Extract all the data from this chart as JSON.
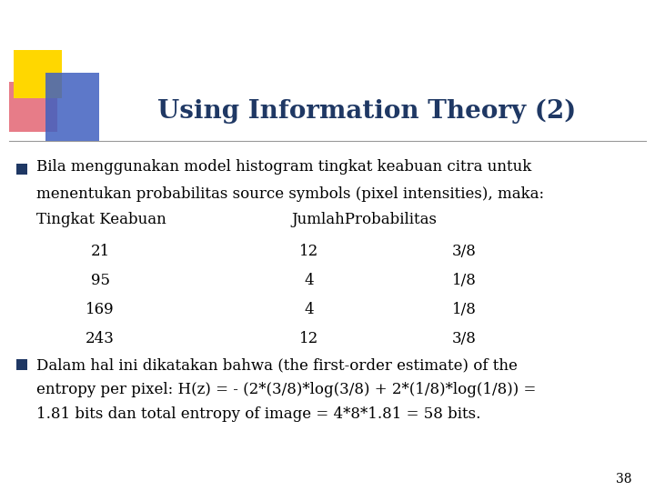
{
  "title": "Using Information Theory (2)",
  "title_color": "#1F3864",
  "background_color": "#FFFFFF",
  "accent_yellow": "#FFD700",
  "accent_red": "#E05060",
  "accent_blue": "#4060C0",
  "bullet_color": "#1F3864",
  "text_color": "#000000",
  "bullet1_line1": "Bila menggunakan model histogram tingkat keabuan citra untuk",
  "bullet1_line2": "menentukan probabilitas source symbols (pixel intensities), maka:",
  "table_header_col1": "Tingkat Keabuan",
  "table_header_col2": "Jumlah",
  "table_header_col3": "Probabilitas",
  "table_rows": [
    [
      "21",
      "12",
      "3/8"
    ],
    [
      "95",
      "4",
      "1/8"
    ],
    [
      "169",
      "4",
      "1/8"
    ],
    [
      "243",
      "12",
      "3/8"
    ]
  ],
  "bullet2_line1": "Dalam hal ini dikatakan bahwa (the first-order estimate) of the",
  "bullet2_line2": "entropy per pixel: H(z) = - (2*(3/8)*log(3/8) + 2*(1/8)*log(1/8)) =",
  "bullet2_line3": "1.81 bits dan total entropy of image = 4*8*1.81 = 58 bits.",
  "page_number": "38",
  "font_size_title": 20,
  "font_size_body": 12,
  "font_size_page": 10
}
